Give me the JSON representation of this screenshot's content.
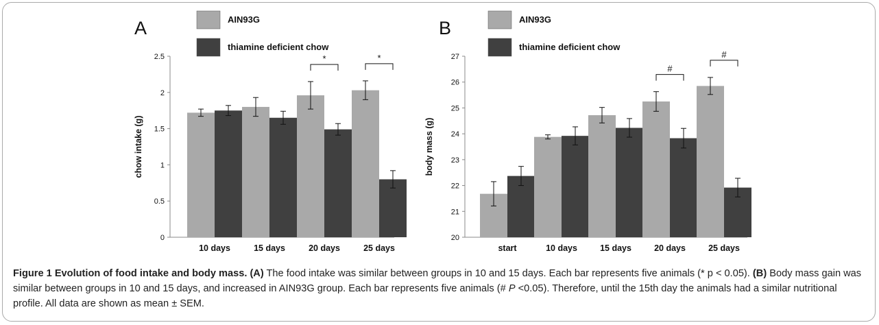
{
  "chart_data": [
    {
      "type": "bar",
      "panel_label": "A",
      "ylabel": "chow intake (g)",
      "ylim": [
        0,
        2.5
      ],
      "yticks": [
        "0",
        "0.5",
        "1",
        "1.5",
        "2",
        "2.5"
      ],
      "yticks_num": [
        0,
        0.5,
        1,
        1.5,
        2,
        2.5
      ],
      "categories": [
        "10 days",
        "15 days",
        "20 days",
        "25 days"
      ],
      "series": [
        {
          "name": "AIN93G",
          "color": "#a9a9a9",
          "values": [
            1.72,
            1.8,
            1.96,
            2.03
          ],
          "errors": [
            0.05,
            0.13,
            0.19,
            0.13
          ]
        },
        {
          "name": "thiamine deficient chow",
          "color": "#404040",
          "values": [
            1.75,
            1.65,
            1.49,
            0.8
          ],
          "errors": [
            0.07,
            0.09,
            0.08,
            0.12
          ]
        }
      ],
      "annotations": [
        {
          "category_index": 2,
          "text": "*"
        },
        {
          "category_index": 3,
          "text": "*"
        }
      ],
      "legend_position": "top-left"
    },
    {
      "type": "bar",
      "panel_label": "B",
      "ylabel": "body mass (g)",
      "ylim": [
        20,
        27
      ],
      "yticks": [
        "20",
        "21",
        "22",
        "23",
        "24",
        "25",
        "26",
        "27"
      ],
      "yticks_num": [
        20,
        21,
        22,
        23,
        24,
        25,
        26,
        27
      ],
      "categories": [
        "start",
        "10 days",
        "15 days",
        "20 days",
        "25 days"
      ],
      "series": [
        {
          "name": "AIN93G",
          "color": "#a9a9a9",
          "values": [
            21.68,
            23.88,
            24.72,
            25.25,
            25.85
          ],
          "errors": [
            0.47,
            0.08,
            0.3,
            0.38,
            0.33
          ]
        },
        {
          "name": "thiamine deficient chow",
          "color": "#404040",
          "values": [
            22.37,
            23.92,
            24.23,
            23.83,
            21.92
          ],
          "errors": [
            0.37,
            0.35,
            0.36,
            0.38,
            0.36
          ]
        }
      ],
      "annotations": [
        {
          "category_index": 3,
          "text": "#"
        },
        {
          "category_index": 4,
          "text": "#"
        }
      ],
      "legend_position": "top-left"
    }
  ],
  "caption": {
    "figure_label": "Figure 1",
    "title": "Evolution of food intake and body mass.",
    "part_a_label": "(A)",
    "part_a_text": "The food intake was similar between groups in 10 and 15 days. Each bar represents five animals (* p < 0.05).",
    "part_b_label": "(B)",
    "part_b_text_1": "Body mass gain was similar between groups in 10 and 15 days, and increased in AIN93G group. Each bar represents five animals (#",
    "p_italic": "P",
    "part_b_text_2": "<0.05). Therefore, until the 15th day the animals had a similar nutritional profile. All data are shown as mean ± SEM."
  }
}
